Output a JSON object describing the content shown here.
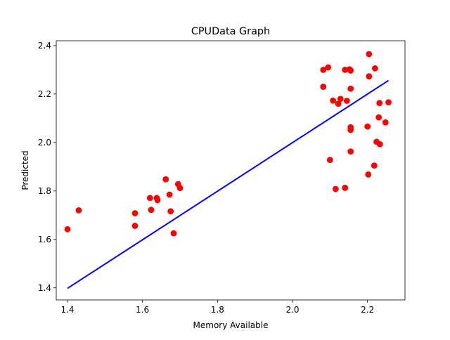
{
  "chart_data": {
    "type": "scatter",
    "title": "CPUData Graph",
    "xlabel": "Memory Available",
    "ylabel": "Predicted",
    "xlim": [
      1.37,
      2.3
    ],
    "ylim": [
      1.35,
      2.42
    ],
    "xticks": [
      1.4,
      1.6,
      1.8,
      2.0,
      2.2
    ],
    "yticks": [
      1.4,
      1.6,
      1.8,
      2.0,
      2.2,
      2.4
    ],
    "xtick_labels": [
      "1.4",
      "1.6",
      "1.8",
      "2.0",
      "2.2"
    ],
    "ytick_labels": [
      "1.4",
      "1.6",
      "1.8",
      "2.0",
      "2.2",
      "2.4"
    ],
    "grid": false,
    "series": [
      {
        "kind": "scatter",
        "color": "#ff0000",
        "points": [
          [
            1.4,
            1.642
          ],
          [
            1.43,
            1.72
          ],
          [
            1.58,
            1.708
          ],
          [
            1.58,
            1.656
          ],
          [
            1.62,
            1.771
          ],
          [
            1.623,
            1.722
          ],
          [
            1.638,
            1.771
          ],
          [
            1.64,
            1.762
          ],
          [
            1.662,
            1.848
          ],
          [
            1.672,
            1.785
          ],
          [
            1.675,
            1.716
          ],
          [
            1.683,
            1.625
          ],
          [
            1.695,
            1.828
          ],
          [
            1.7,
            1.812
          ],
          [
            2.082,
            2.3
          ],
          [
            2.082,
            2.23
          ],
          [
            2.095,
            2.31
          ],
          [
            2.1,
            1.928
          ],
          [
            2.108,
            2.173
          ],
          [
            2.115,
            1.808
          ],
          [
            2.122,
            2.16
          ],
          [
            2.128,
            2.18
          ],
          [
            2.14,
            2.3
          ],
          [
            2.14,
            1.813
          ],
          [
            2.145,
            2.172
          ],
          [
            2.152,
            2.302
          ],
          [
            2.155,
            2.297
          ],
          [
            2.155,
            2.222
          ],
          [
            2.155,
            2.063
          ],
          [
            2.155,
            2.052
          ],
          [
            2.155,
            1.963
          ],
          [
            2.2,
            2.066
          ],
          [
            2.202,
            1.868
          ],
          [
            2.204,
            2.365
          ],
          [
            2.204,
            2.273
          ],
          [
            2.218,
            1.905
          ],
          [
            2.22,
            2.306
          ],
          [
            2.224,
            2.003
          ],
          [
            2.23,
            2.104
          ],
          [
            2.232,
            2.163
          ],
          [
            2.233,
            1.993
          ],
          [
            2.248,
            2.083
          ],
          [
            2.256,
            2.166
          ]
        ]
      },
      {
        "kind": "line",
        "color": "#0000ff",
        "points": [
          [
            1.4,
            1.398
          ],
          [
            2.256,
            2.256
          ]
        ]
      }
    ]
  }
}
